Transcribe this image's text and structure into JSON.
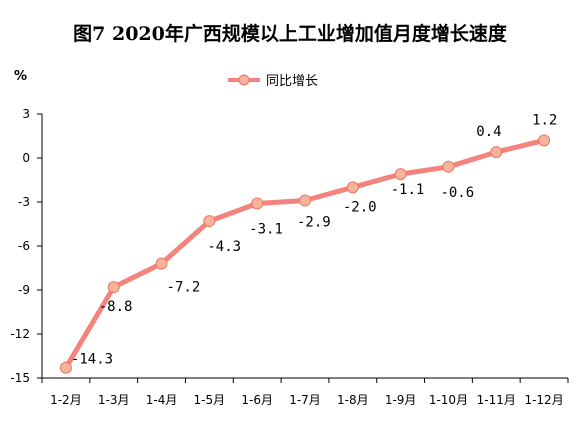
{
  "chart_data": {
    "type": "line",
    "title": "图7  2020年广西规模以上工业增加值月度增长速度",
    "ylabel": "%",
    "xlabel": "",
    "categories": [
      "1-2月",
      "1-3月",
      "1-4月",
      "1-5月",
      "1-6月",
      "1-7月",
      "1-8月",
      "1-9月",
      "1-10月",
      "1-11月",
      "1-12月"
    ],
    "series": [
      {
        "name": "同比增长",
        "values": [
          -14.3,
          -8.8,
          -7.2,
          -4.3,
          -3.1,
          -2.9,
          -2.0,
          -1.1,
          -0.6,
          0.4,
          1.2
        ],
        "labels": [
          "-14.3",
          "-8.8",
          "-7.2",
          "-4.3",
          "-3.1",
          "-2.9",
          "-2.0",
          "-1.1",
          "-0.6",
          "0.4",
          "1.2"
        ],
        "line_color": "#f4837e",
        "marker_color": "#f5b49a",
        "marker_edge": "#e87868"
      }
    ],
    "ylim": [
      -15,
      3
    ],
    "yticks": [
      3,
      0,
      -3,
      -6,
      -9,
      -12,
      -15
    ],
    "legend": "top-center",
    "grid": false
  }
}
